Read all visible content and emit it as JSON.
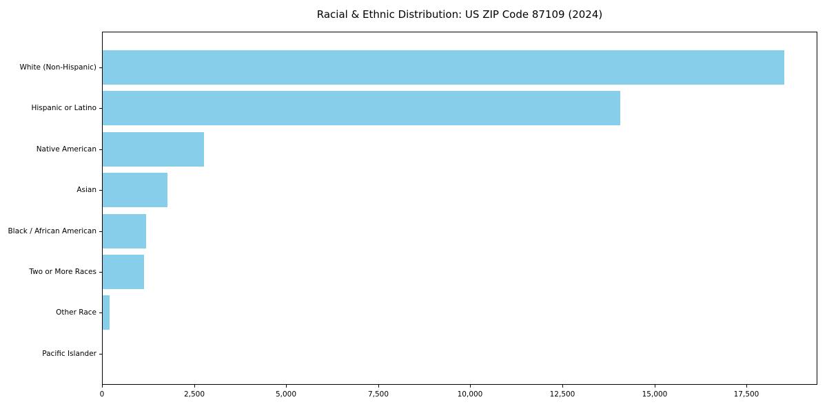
{
  "chart_data": {
    "type": "bar",
    "orientation": "horizontal",
    "title": "Racial & Ethnic Distribution: US ZIP Code 87109 (2024)",
    "categories": [
      "White (Non-Hispanic)",
      "Hispanic or Latino",
      "Native American",
      "Asian",
      "Black / African American",
      "Two or More Races",
      "Other Race",
      "Pacific Islander"
    ],
    "values": [
      18500,
      14050,
      2750,
      1760,
      1180,
      1120,
      185,
      0
    ],
    "xlabel": "",
    "ylabel": "",
    "xlim": [
      0,
      19425
    ],
    "xticks": [
      0,
      2500,
      5000,
      7500,
      10000,
      12500,
      15000,
      17500
    ],
    "xtick_labels": [
      "0",
      "2,500",
      "5,000",
      "7,500",
      "10,000",
      "12,500",
      "15,000",
      "17,500"
    ],
    "bar_color": "#87CEEB",
    "axis_color": "#000000",
    "background": "#ffffff",
    "grid": false,
    "legend": null
  }
}
